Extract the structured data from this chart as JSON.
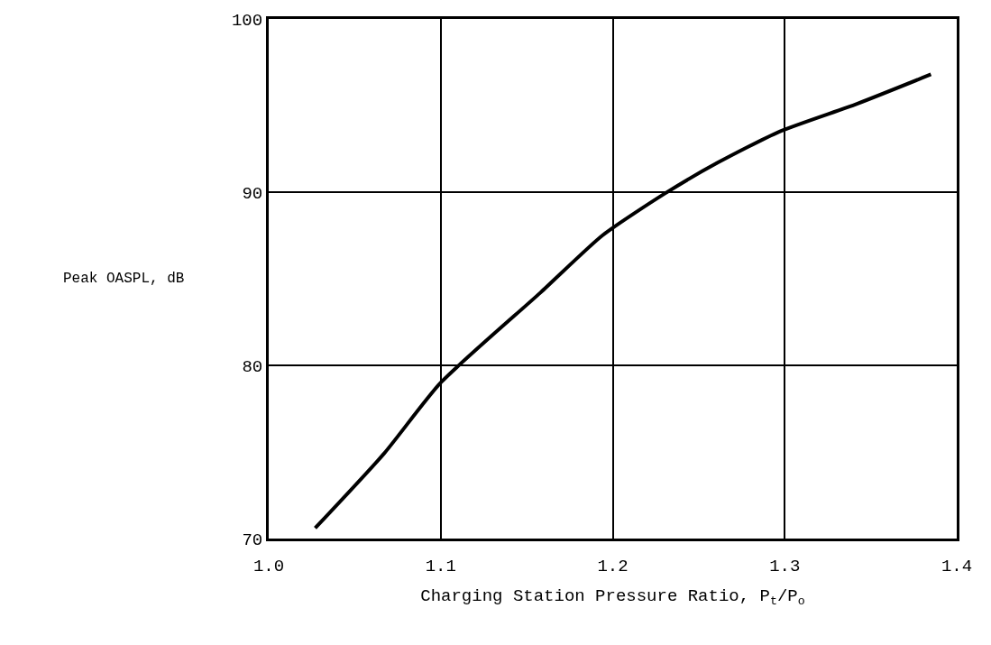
{
  "chart_data": {
    "type": "line",
    "xlabel": "Charging Station Pressure Ratio, P$_{t}$/P$_{o}$",
    "ylabel": "Peak OASPL, dB",
    "x": [
      1.027,
      1.067,
      1.1,
      1.158,
      1.194,
      1.23,
      1.261,
      1.297,
      1.342,
      1.385
    ],
    "series": [
      {
        "color": "#000000",
        "values": [
          70.6,
          74.9,
          79.0,
          84.2,
          87.5,
          89.9,
          91.7,
          93.5,
          95.1,
          96.8
        ]
      }
    ],
    "xlim": [
      1.0,
      1.4
    ],
    "xticks": [
      {
        "value": 1.0,
        "label": "1.0"
      },
      {
        "value": 1.1,
        "label": "1.1"
      },
      {
        "value": 1.2,
        "label": "1.2"
      },
      {
        "value": 1.3,
        "label": "1.3"
      },
      {
        "value": 1.4,
        "label": "1.4"
      }
    ],
    "ylim": [
      70,
      100
    ],
    "yticks": [
      70,
      80,
      90,
      100
    ],
    "grid": true,
    "legend": false,
    "marker": "none",
    "line_style": "solid"
  }
}
